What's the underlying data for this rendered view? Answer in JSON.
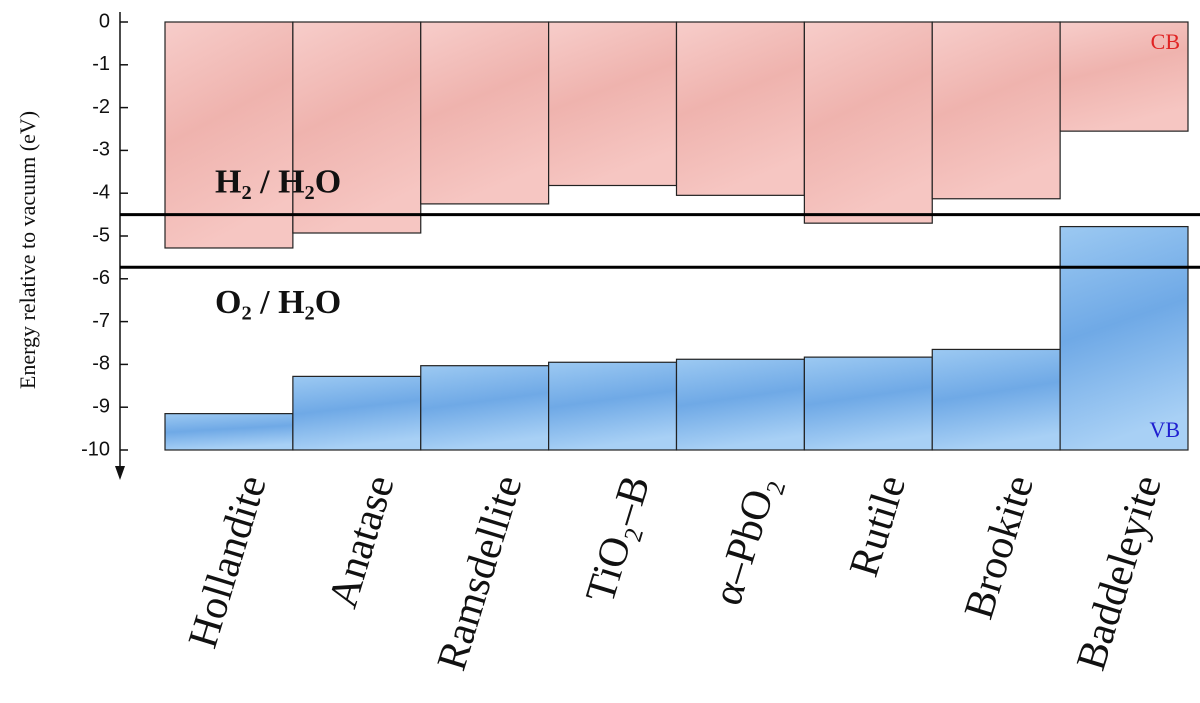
{
  "chart_data": {
    "type": "band-edges",
    "y_label": "Energy relative to vacuum (eV)",
    "categories": [
      "Hollandite",
      "Anatase",
      "Ramsdellite",
      "TiO₂–B",
      "α–PbO₂",
      "Rutile",
      "Brookite",
      "Baddeleyite"
    ],
    "series": [
      {
        "name": "CB",
        "color": "#f4bfbb",
        "label_color": "#e02424",
        "values": [
          -5.28,
          -4.93,
          -4.25,
          -3.82,
          -4.05,
          -4.7,
          -4.13,
          -2.55
        ]
      },
      {
        "name": "VB",
        "color": "#84bbee",
        "label_color": "#1f1fd0",
        "values": [
          -9.15,
          -8.28,
          -8.03,
          -7.95,
          -7.88,
          -7.83,
          -7.65,
          -4.78
        ]
      }
    ],
    "reference_lines": [
      {
        "label": "H₂ / H₂O",
        "value": -4.5
      },
      {
        "label": "O₂ / H₂O",
        "value": -5.73
      }
    ],
    "ylim": [
      -10,
      0
    ],
    "yticks": [
      0,
      -1,
      -2,
      -3,
      -4,
      -5,
      -6,
      -7,
      -8,
      -9,
      -10
    ]
  }
}
